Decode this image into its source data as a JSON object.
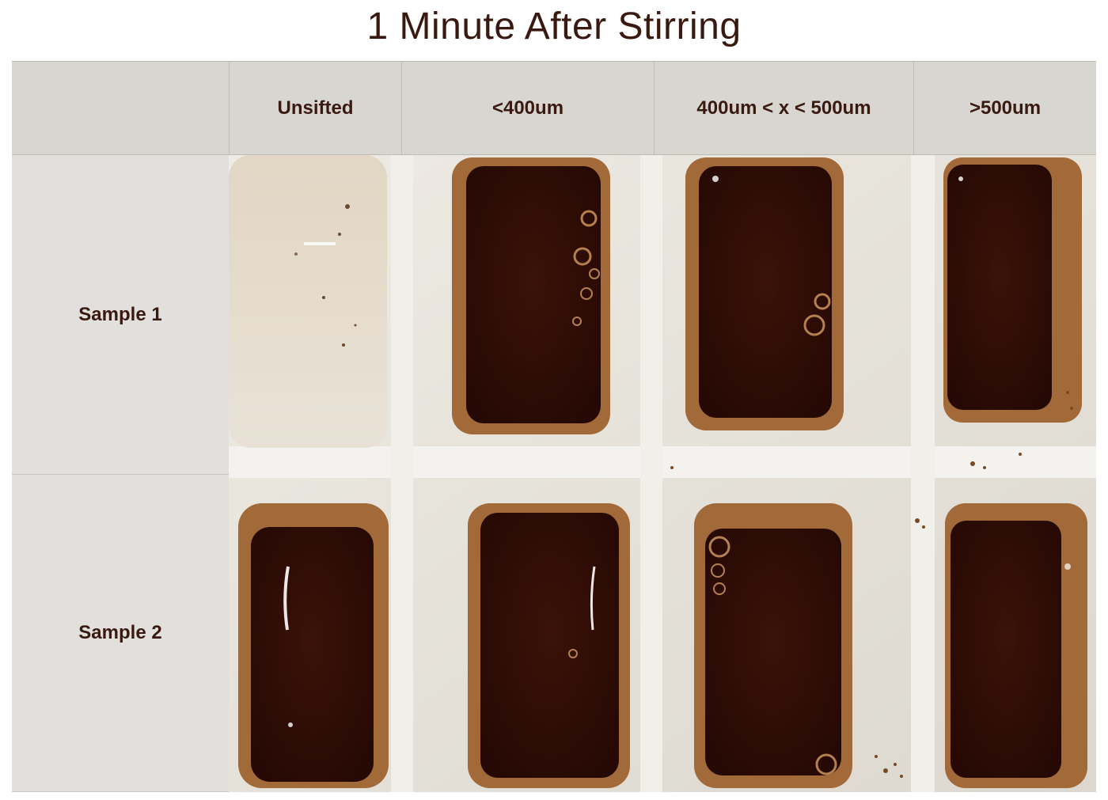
{
  "title": "1 Minute After Stirring",
  "columns": [
    "",
    "Unsifted",
    "<400um",
    "400um < x < 500um",
    ">500um"
  ],
  "rows": [
    {
      "label": "Sample 1"
    },
    {
      "label": "Sample 2"
    }
  ],
  "colors": {
    "title_text": "#3a1a10",
    "header_bg": "#d8d6d0",
    "row_label_bg": "#e1e0dd",
    "tray": "#e6e3dc",
    "coffee_dark": "#2e0e06",
    "coffee_crema": "#9a6534",
    "milky": "#ddd3c2"
  }
}
